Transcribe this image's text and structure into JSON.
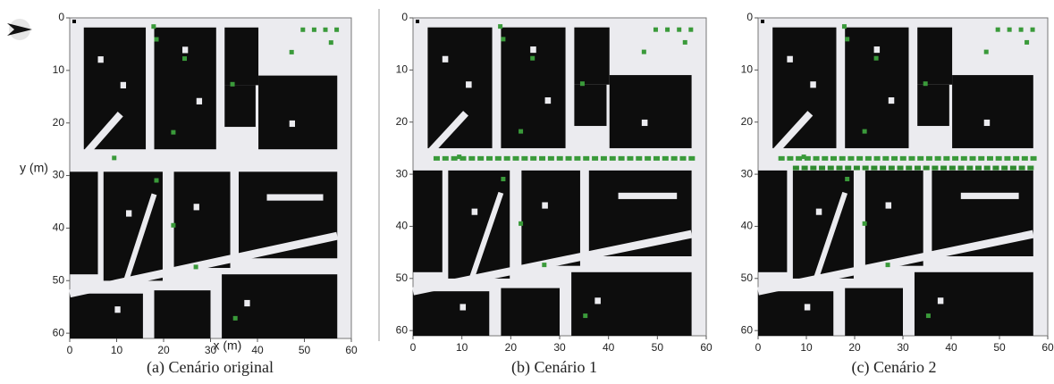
{
  "chart_data": [
    {
      "type": "map",
      "caption": "(a) Cenário original",
      "xlabel": "x (m)",
      "ylabel": "y (m)",
      "xlim": [
        0,
        60
      ],
      "ylim": [
        0,
        61
      ],
      "xticks": [
        0,
        10,
        20,
        30,
        40,
        50,
        60
      ],
      "yticks": [
        0,
        10,
        20,
        30,
        40,
        50,
        60
      ]
    },
    {
      "type": "map",
      "caption": "(b) Cenário 1",
      "xlim": [
        0,
        60
      ],
      "ylim": [
        0,
        61
      ],
      "xticks": [
        0,
        10,
        20,
        30,
        40,
        50,
        60
      ],
      "yticks": [
        0,
        10,
        20,
        30,
        40,
        50,
        60
      ]
    },
    {
      "type": "map",
      "caption": "(c) Cenário 2",
      "xlim": [
        0,
        60
      ],
      "ylim": [
        0,
        61
      ],
      "xticks": [
        0,
        10,
        20,
        30,
        40,
        50,
        60
      ],
      "yticks": [
        0,
        10,
        20,
        30,
        40,
        50,
        60
      ]
    }
  ]
}
